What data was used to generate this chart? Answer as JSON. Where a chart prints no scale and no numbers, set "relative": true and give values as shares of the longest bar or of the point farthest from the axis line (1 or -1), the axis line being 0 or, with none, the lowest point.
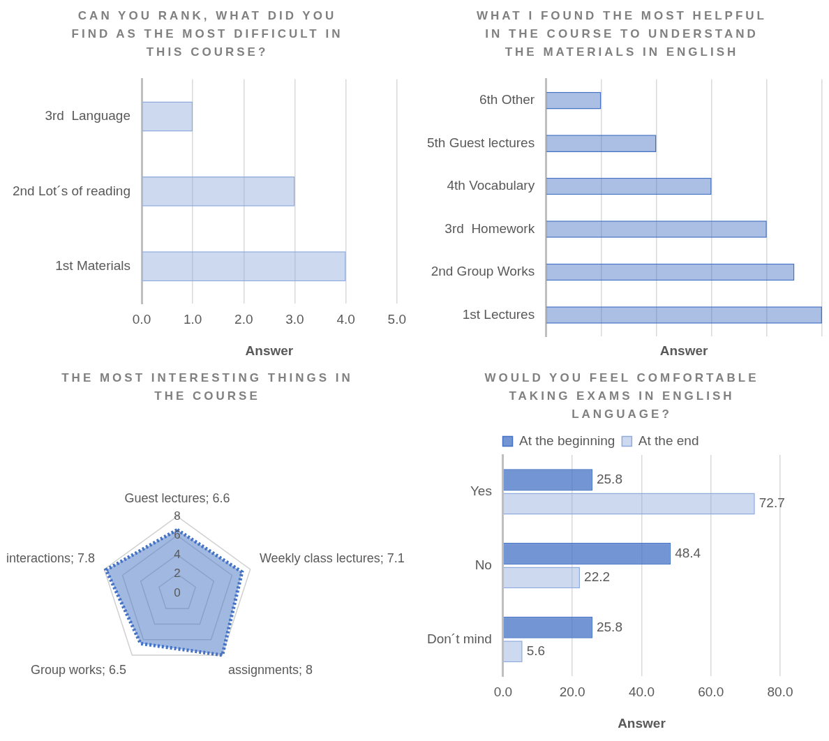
{
  "chart_data": [
    {
      "type": "bar",
      "orientation": "horizontal",
      "title": "CAN YOU RANK, WHAT DID YOU FIND AS THE MOST DIFFICULT IN THIS COURSE?",
      "xlabel": "Answer",
      "categories": [
        "3rd  Language",
        "2nd Lot´s of reading",
        "1st Materials"
      ],
      "values": [
        1,
        3,
        4
      ],
      "color": "#8faadc",
      "xlim": [
        0,
        5
      ],
      "xticks": [
        {
          "value": 0,
          "label": "0.0"
        },
        {
          "value": 1,
          "label": "1.0"
        },
        {
          "value": 2,
          "label": "2.0"
        },
        {
          "value": 3,
          "label": "3.0"
        },
        {
          "value": 4,
          "label": "4.0"
        },
        {
          "value": 5,
          "label": "5.0"
        }
      ],
      "grid": "x",
      "legend": false
    },
    {
      "type": "bar",
      "orientation": "horizontal",
      "relative": true,
      "title": "WHAT I FOUND THE MOST HELPFUL IN THE COURSE TO UNDERSTAND THE MATERIALS IN ENGLISH",
      "xlabel": "Answer",
      "categories": [
        "6th Other",
        "5th Guest lectures",
        "4th Vocabulary",
        "3rd  Homework",
        "2nd Group Works",
        "1st Lectures"
      ],
      "values": [
        0.2,
        0.4,
        0.6,
        0.8,
        0.9,
        1
      ],
      "color": "#4472c4",
      "grid": "x",
      "legend": false
    },
    {
      "type": "radar",
      "title": "THE MOST INTERESTING THINGS IN THE COURSE",
      "categories": [
        "Guest lectures; 6.6",
        "Weekly class lectures; 7.1",
        "assignments; 8",
        "Group works; 6.5",
        "interactions; 7.8"
      ],
      "series": [
        {
          "color": "#4472c4",
          "values": [
            6.6,
            7.1,
            8,
            6.5,
            7.8
          ]
        }
      ],
      "ylim": [
        0,
        8
      ],
      "yticks": [
        0,
        2,
        4,
        6,
        8
      ],
      "line_style": "dotted",
      "marker": "none",
      "grid": true,
      "legend": false
    },
    {
      "type": "bar",
      "orientation": "horizontal",
      "title": "WOULD YOU FEEL COMFORTABLE TAKING EXAMS IN ENGLISH LANGUAGE?",
      "xlabel": "Answer",
      "categories": [
        "Yes",
        "No",
        "Don´t mind"
      ],
      "series": [
        {
          "name": "At the beginning",
          "color": "#4472c4",
          "values": [
            25.8,
            48.4,
            25.8
          ]
        },
        {
          "name": "At the end",
          "color": "#8faadc",
          "values": [
            72.7,
            22.2,
            5.6
          ]
        }
      ],
      "xlim": [
        0,
        80
      ],
      "xticks": [
        {
          "value": 0,
          "label": "0.0"
        },
        {
          "value": 20,
          "label": "20.0"
        },
        {
          "value": 40,
          "label": "40.0"
        },
        {
          "value": 60,
          "label": "60.0"
        },
        {
          "value": 80,
          "label": "80.0"
        }
      ],
      "grid": "x",
      "legend": "top",
      "data_labels": true
    }
  ]
}
